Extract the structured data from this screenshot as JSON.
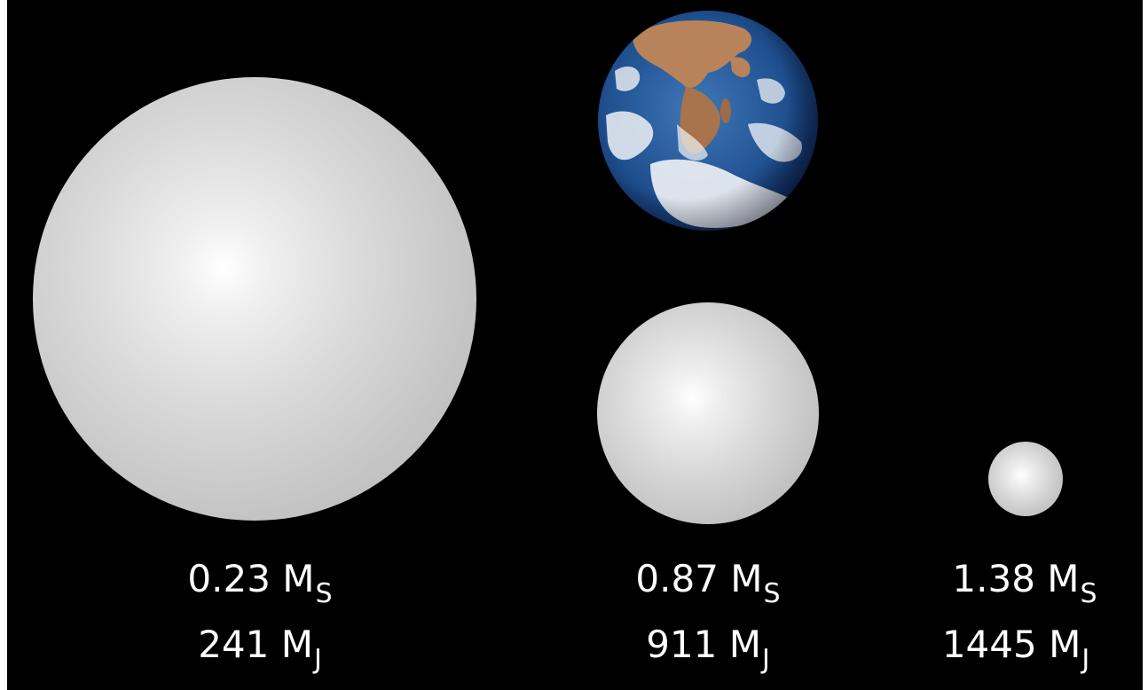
{
  "objects": [
    {
      "mass_solar": "0.23 M",
      "mass_solar_sub": "S",
      "mass_jupiter": "241 M",
      "mass_jupiter_sub": "J"
    },
    {
      "mass_solar": "0.87 M",
      "mass_solar_sub": "S",
      "mass_jupiter": "911 M",
      "mass_jupiter_sub": "J"
    },
    {
      "mass_solar": "1.38 M",
      "mass_solar_sub": "S",
      "mass_jupiter": "1445 M",
      "mass_jupiter_sub": "J"
    }
  ],
  "colors": {
    "background": "#000000",
    "text": "#ffffff",
    "sphere": "#d9d9d9",
    "ocean": "#2a5a9c",
    "land": "#b8835a",
    "cloud": "#f2f4f6"
  },
  "icons": {
    "reference_body": "earth-icon"
  }
}
